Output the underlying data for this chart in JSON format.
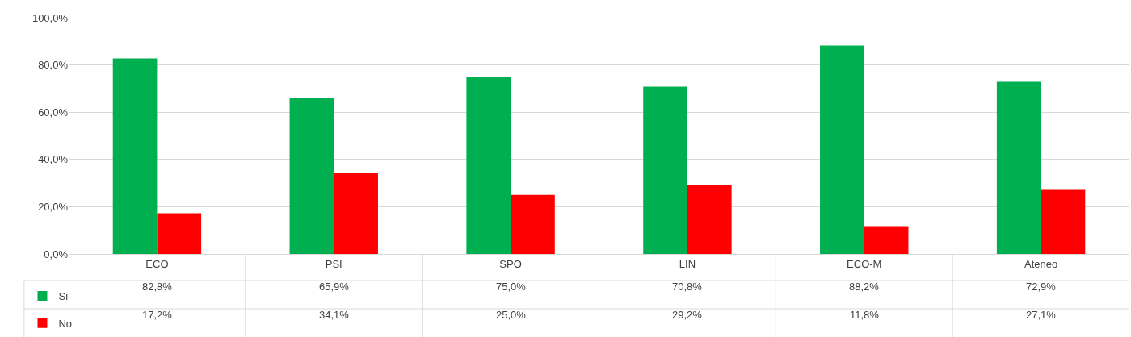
{
  "chart_data": {
    "type": "bar",
    "categories": [
      "ECO",
      "PSI",
      "SPO",
      "LIN",
      "ECO-M",
      "Ateneo"
    ],
    "series": [
      {
        "name": "Si",
        "color": "#00b050",
        "values": [
          82.8,
          65.9,
          75.0,
          70.8,
          88.2,
          72.9
        ],
        "value_labels": [
          "82,8%",
          "65,9%",
          "75,0%",
          "70,8%",
          "88,2%",
          "72,9%"
        ]
      },
      {
        "name": "No",
        "color": "#ff0000",
        "values": [
          17.2,
          34.1,
          25.0,
          29.2,
          11.8,
          27.1
        ],
        "value_labels": [
          "17,2%",
          "34,1%",
          "25,0%",
          "29,2%",
          "11,8%",
          "27,1%"
        ]
      }
    ],
    "ylim": [
      0,
      100
    ],
    "yticks": [
      {
        "value": 0,
        "label": "0,0%"
      },
      {
        "value": 20,
        "label": "20,0%"
      },
      {
        "value": 40,
        "label": "40,0%"
      },
      {
        "value": 60,
        "label": "60,0%"
      },
      {
        "value": 80,
        "label": "80,0%"
      },
      {
        "value": 100,
        "label": "100,0%"
      }
    ],
    "grid": "y",
    "legend": "bottom left"
  }
}
